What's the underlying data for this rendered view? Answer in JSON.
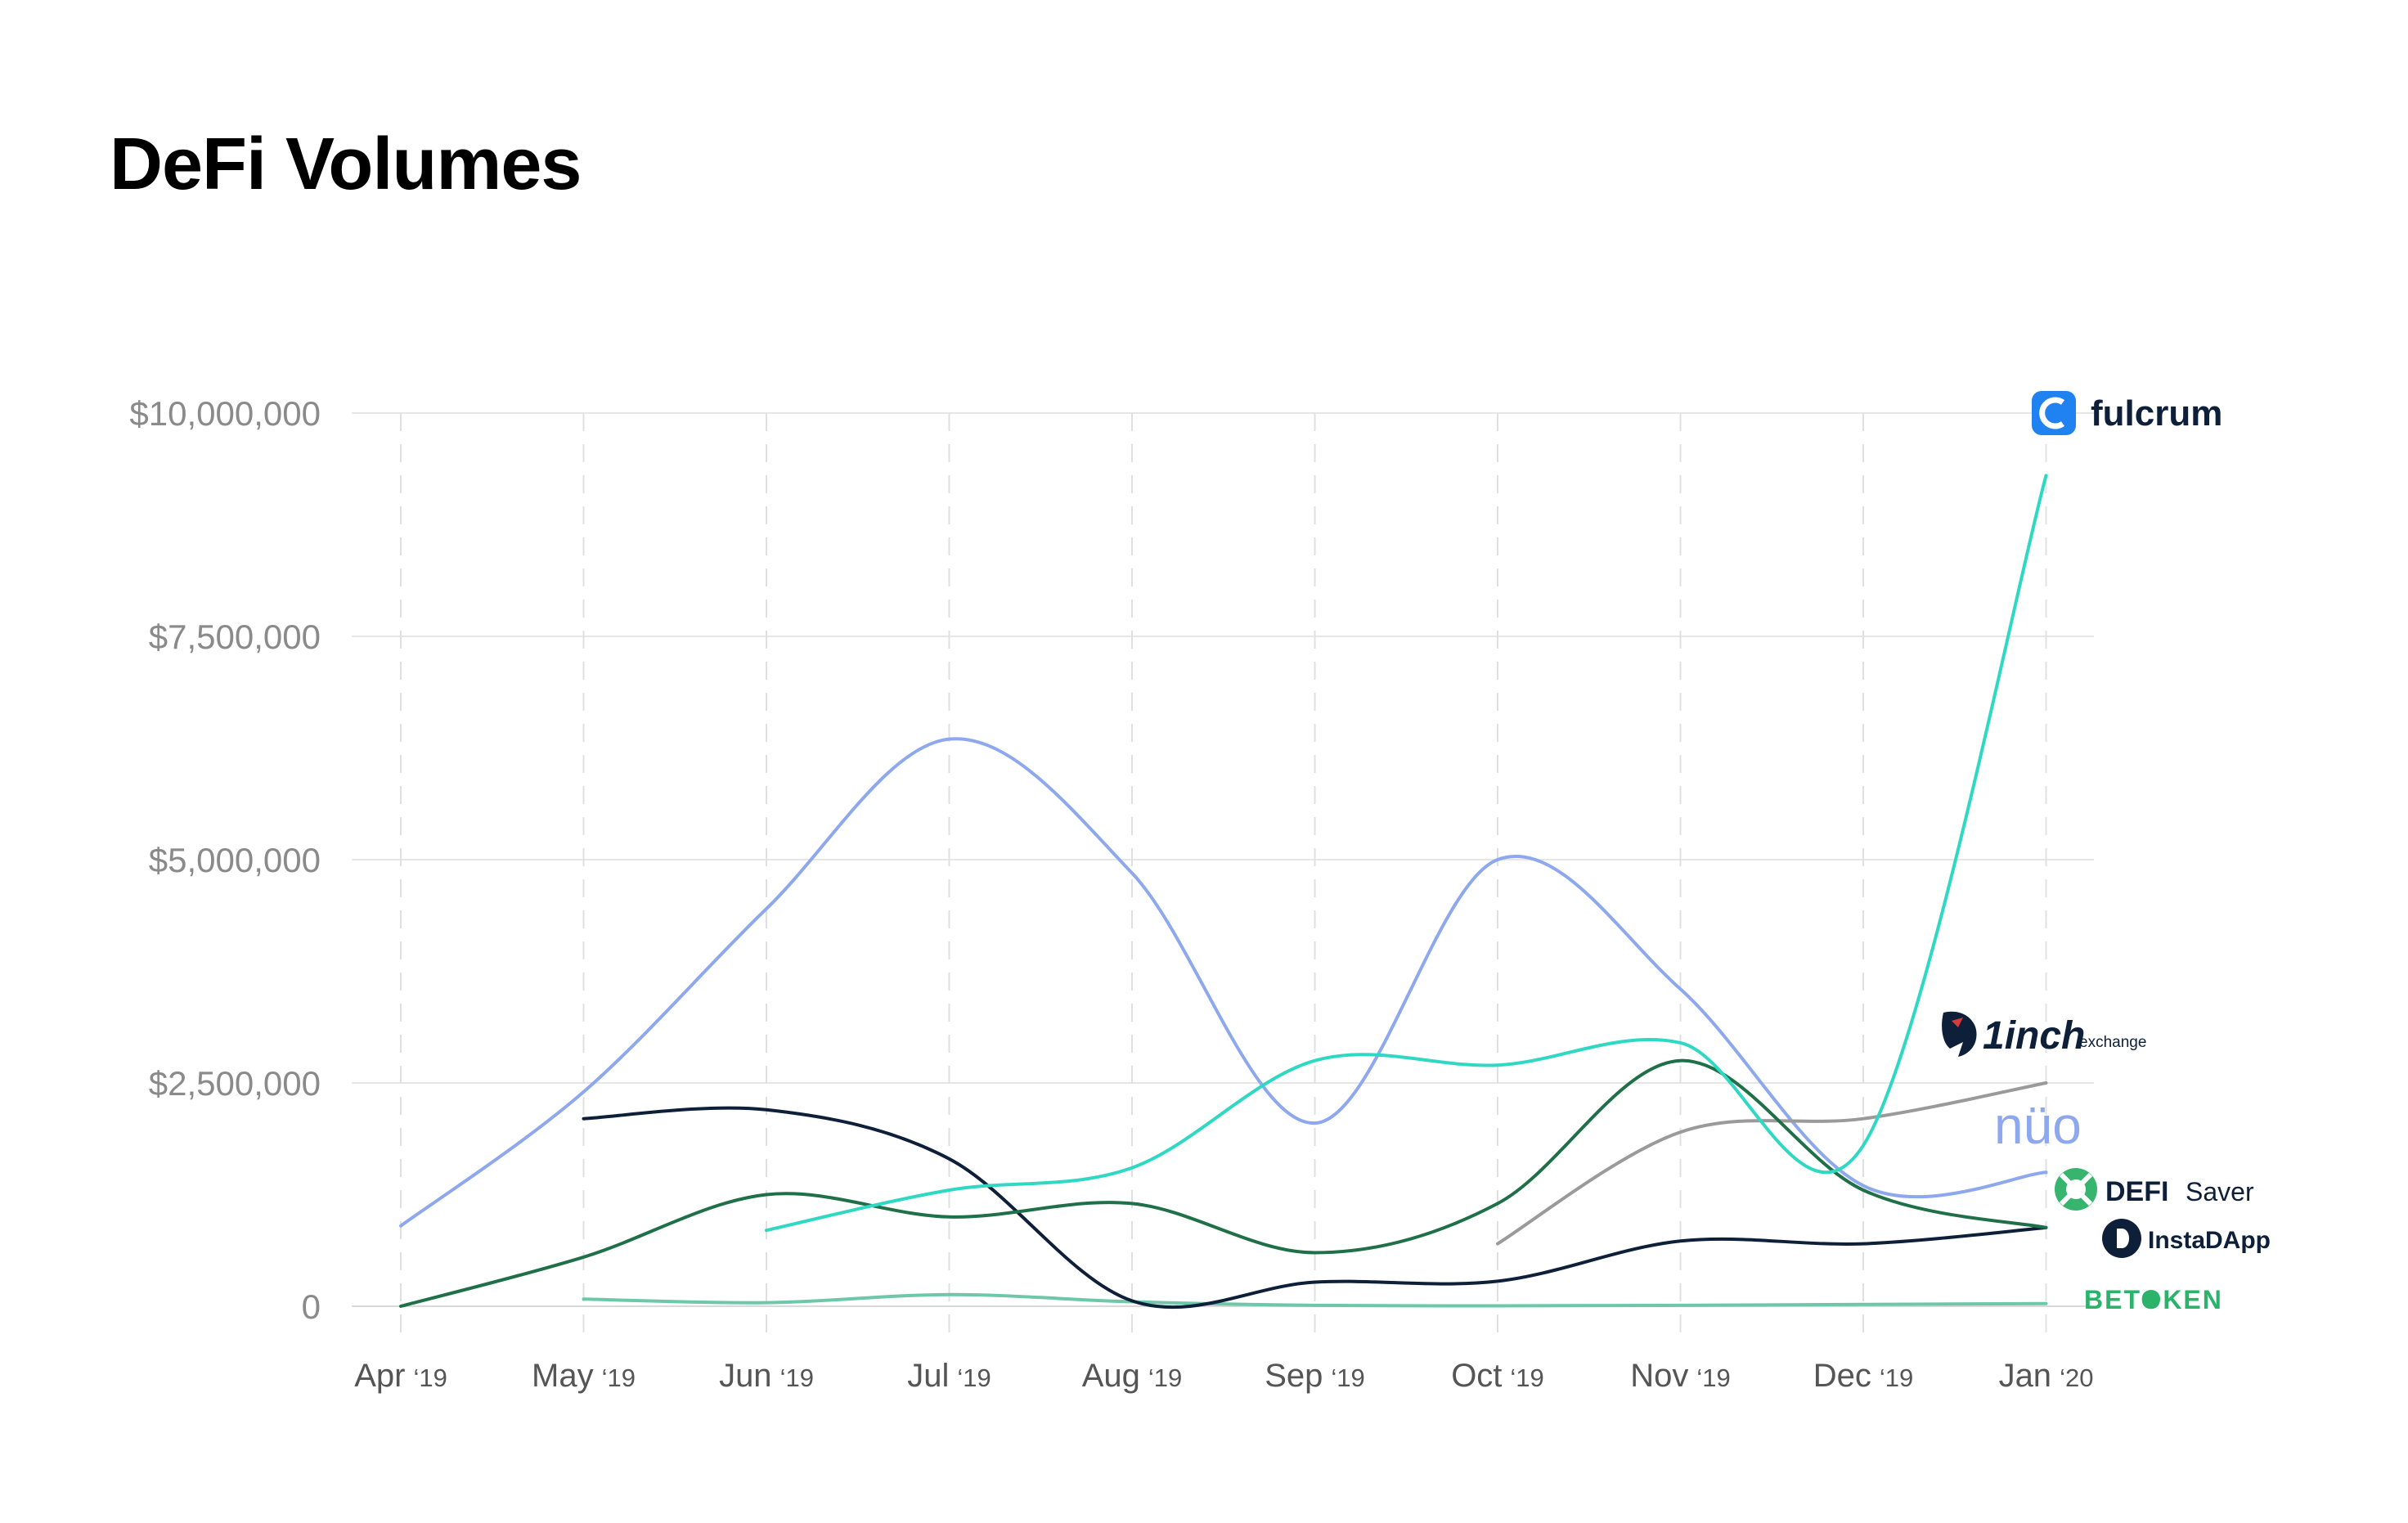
{
  "chart_data": {
    "type": "line",
    "title": "DeFi Volumes",
    "xlabel": "",
    "ylabel": "",
    "ylim": [
      0,
      10000000
    ],
    "yticks": [
      0,
      2500000,
      5000000,
      7500000,
      10000000
    ],
    "ytick_labels": [
      "0",
      "$2,500,000",
      "$5,000,000",
      "$7,500,000",
      "$10,000,000"
    ],
    "x": [
      {
        "month": "Apr",
        "year": "‘19"
      },
      {
        "month": "May",
        "year": "‘19"
      },
      {
        "month": "Jun",
        "year": "‘19"
      },
      {
        "month": "Jul",
        "year": "‘19"
      },
      {
        "month": "Aug",
        "year": "‘19"
      },
      {
        "month": "Sep",
        "year": "‘19"
      },
      {
        "month": "Oct",
        "year": "‘19"
      },
      {
        "month": "Nov",
        "year": "‘19"
      },
      {
        "month": "Dec",
        "year": "‘19"
      },
      {
        "month": "Jan",
        "year": "‘20"
      }
    ],
    "series": [
      {
        "name": "Fulcrum",
        "color": "#2ed8c3",
        "values": [
          null,
          null,
          850000,
          1300000,
          1550000,
          2750000,
          2700000,
          2950000,
          1800000,
          9300000
        ]
      },
      {
        "name": "1inch exchange",
        "color": "#9a9a9a",
        "values": [
          null,
          null,
          null,
          null,
          null,
          null,
          700000,
          1950000,
          2100000,
          2500000
        ]
      },
      {
        "name": "Nuo",
        "color": "#8ea8ee",
        "values": [
          900000,
          2400000,
          4450000,
          6350000,
          4850000,
          2050000,
          5000000,
          3550000,
          1350000,
          1500000
        ]
      },
      {
        "name": "DeFi Saver",
        "color": "#1f7048",
        "values": [
          0,
          550000,
          1250000,
          1000000,
          1150000,
          600000,
          1150000,
          2750000,
          1300000,
          880000
        ]
      },
      {
        "name": "InstaDApp",
        "color": "#0e1f3a",
        "values": [
          null,
          2100000,
          2200000,
          1650000,
          60000,
          270000,
          280000,
          730000,
          700000,
          880000
        ]
      },
      {
        "name": "Betoken",
        "color": "#6cc8a8",
        "values": [
          null,
          80000,
          40000,
          130000,
          50000,
          10000,
          5000,
          10000,
          20000,
          30000
        ]
      }
    ],
    "legend_position": "right",
    "legend": [
      {
        "series": "Fulcrum",
        "text": "fulcrum",
        "icon": "fulcrum-logo-icon",
        "color": "#1f82f0"
      },
      {
        "series": "1inch exchange",
        "text": "1inch",
        "subtext": "exchange",
        "icon": "unicorn-logo-icon",
        "color": "#0e1f3a"
      },
      {
        "series": "Nuo",
        "text": "nüo",
        "icon": "nuo-logo-icon",
        "color": "#8ea8ee"
      },
      {
        "series": "DeFi Saver",
        "text": "DEFI",
        "subtext": "Saver",
        "icon": "lifebuoy-logo-icon",
        "color": "#37b56f"
      },
      {
        "series": "InstaDApp",
        "text": "InstaDApp",
        "icon": "instadapp-logo-icon",
        "color": "#0e1f3a"
      },
      {
        "series": "Betoken",
        "text": "BETOKEN",
        "icon": "betoken-logo-icon",
        "color": "#2cb36b"
      }
    ]
  }
}
